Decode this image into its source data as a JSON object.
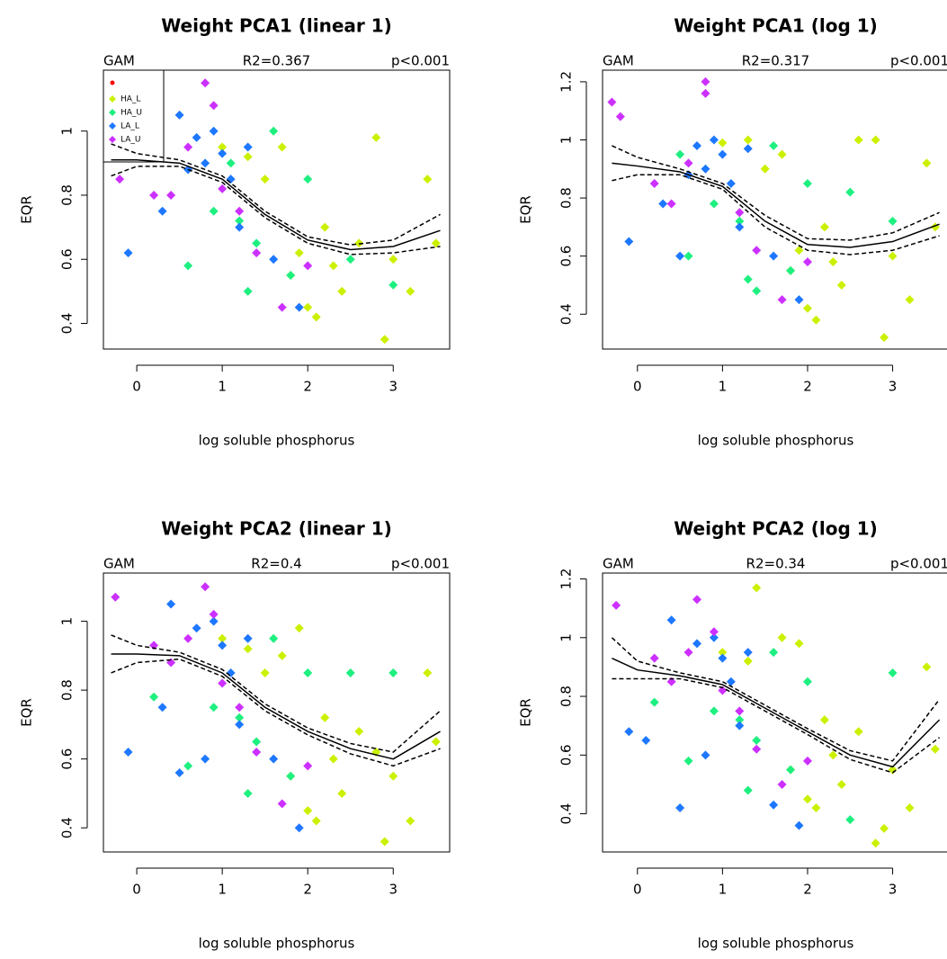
{
  "chart_data": [
    {
      "type": "scatter",
      "title": "Weight PCA1 (linear 1)",
      "header": [
        "GAM",
        "R2=0.367",
        "p<0.001"
      ],
      "xlabel": "log soluble phosphorus",
      "ylabel": "EQR",
      "xlim": [
        -0.39,
        3.66
      ],
      "ylim": [
        0.32,
        1.19
      ],
      "xticks": [
        0,
        1,
        2,
        3
      ],
      "yticks": [
        0.4,
        0.6,
        0.8,
        1.0
      ],
      "legend": "topleft",
      "series": [
        {
          "name": "HA_L",
          "color": "#ccf000",
          "x": [
            1.0,
            1.3,
            1.5,
            1.8,
            2.0,
            2.2,
            2.4,
            2.6,
            2.8,
            3.0,
            3.2,
            3.4,
            1.7,
            2.1,
            2.9,
            2.3,
            1.9,
            3.5
          ],
          "y": [
            0.95,
            0.92,
            0.85,
            0.55,
            0.45,
            0.7,
            0.5,
            0.65,
            0.98,
            0.6,
            0.5,
            0.85,
            0.95,
            0.42,
            0.35,
            0.58,
            0.62,
            0.65
          ]
        },
        {
          "name": "HA_U",
          "color": "#1ef080",
          "x": [
            0.6,
            0.9,
            1.2,
            1.4,
            1.6,
            1.8,
            2.0,
            2.5,
            3.0,
            1.3,
            1.1
          ],
          "y": [
            0.58,
            0.75,
            0.72,
            0.65,
            1.0,
            0.55,
            0.85,
            0.6,
            0.52,
            0.5,
            0.9
          ]
        },
        {
          "name": "LA_L",
          "color": "#1e78ff",
          "x": [
            -0.1,
            0.3,
            0.5,
            0.7,
            0.8,
            0.9,
            1.0,
            1.1,
            1.3,
            1.6,
            1.9,
            0.6,
            1.2
          ],
          "y": [
            0.62,
            0.75,
            1.05,
            0.98,
            0.9,
            1.0,
            0.93,
            0.85,
            0.95,
            0.6,
            0.45,
            0.88,
            0.7
          ]
        },
        {
          "name": "LA_U",
          "color": "#cc30ff",
          "x": [
            -0.2,
            0.2,
            0.4,
            0.8,
            0.9,
            1.2,
            1.4,
            1.7,
            2.0,
            0.6,
            1.0
          ],
          "y": [
            0.85,
            0.8,
            0.8,
            1.15,
            1.08,
            0.75,
            0.62,
            0.45,
            0.58,
            0.95,
            0.82
          ]
        }
      ],
      "curves": [
        {
          "style": "solid",
          "x": [
            -0.3,
            0,
            0.5,
            1,
            1.5,
            2,
            2.5,
            3,
            3.55
          ],
          "y": [
            0.91,
            0.91,
            0.9,
            0.85,
            0.74,
            0.66,
            0.63,
            0.64,
            0.69
          ]
        },
        {
          "style": "dashed",
          "x": [
            -0.3,
            0,
            0.5,
            1,
            1.5,
            2,
            2.5,
            3,
            3.55
          ],
          "y": [
            0.96,
            0.93,
            0.91,
            0.86,
            0.75,
            0.67,
            0.645,
            0.66,
            0.74
          ]
        },
        {
          "style": "dashed",
          "x": [
            -0.3,
            0,
            0.5,
            1,
            1.5,
            2,
            2.5,
            3,
            3.55
          ],
          "y": [
            0.86,
            0.89,
            0.89,
            0.84,
            0.73,
            0.65,
            0.615,
            0.62,
            0.64
          ]
        }
      ]
    },
    {
      "type": "scatter",
      "title": "Weight PCA1 (log 1)",
      "header": [
        "GAM",
        "R2=0.317",
        "p<0.001"
      ],
      "xlabel": "log soluble phosphorus",
      "ylabel": "EQR",
      "xlim": [
        -0.41,
        3.66
      ],
      "ylim": [
        0.28,
        1.24
      ],
      "xticks": [
        0,
        1,
        2,
        3
      ],
      "yticks": [
        0.4,
        0.6,
        0.8,
        1.0,
        1.2
      ],
      "series": [
        {
          "name": "HA_L",
          "color": "#ccf000",
          "x": [
            1.0,
            1.3,
            1.5,
            1.8,
            2.0,
            2.2,
            2.4,
            2.6,
            2.8,
            3.0,
            3.2,
            3.4,
            1.7,
            2.1,
            2.9,
            2.3,
            1.9,
            3.5
          ],
          "y": [
            0.99,
            1.0,
            0.9,
            0.55,
            0.42,
            0.7,
            0.5,
            1.0,
            1.0,
            0.6,
            0.45,
            0.92,
            0.95,
            0.38,
            0.32,
            0.58,
            0.62,
            0.7
          ]
        },
        {
          "name": "HA_U",
          "color": "#1ef080",
          "x": [
            0.6,
            0.9,
            1.2,
            1.4,
            1.6,
            1.8,
            2.0,
            2.5,
            3.0,
            1.3,
            0.5
          ],
          "y": [
            0.6,
            0.78,
            0.72,
            0.48,
            0.98,
            0.55,
            0.85,
            0.82,
            0.72,
            0.52,
            0.95
          ]
        },
        {
          "name": "LA_L",
          "color": "#1e78ff",
          "x": [
            -0.1,
            0.3,
            0.5,
            0.7,
            0.8,
            0.9,
            1.0,
            1.1,
            1.3,
            1.6,
            1.9,
            0.6,
            1.2
          ],
          "y": [
            0.65,
            0.78,
            0.6,
            0.98,
            0.9,
            1.0,
            0.95,
            0.85,
            0.97,
            0.6,
            0.45,
            0.88,
            0.7
          ]
        },
        {
          "name": "LA_U",
          "color": "#cc30ff",
          "x": [
            -0.3,
            -0.2,
            0.2,
            0.4,
            0.8,
            0.8,
            1.2,
            1.4,
            1.7,
            2.0,
            0.6
          ],
          "y": [
            1.13,
            1.08,
            0.85,
            0.78,
            1.2,
            1.16,
            0.75,
            0.62,
            0.45,
            0.58,
            0.92
          ]
        }
      ],
      "curves": [
        {
          "style": "solid",
          "x": [
            -0.3,
            0,
            0.5,
            1,
            1.5,
            2,
            2.5,
            3,
            3.55
          ],
          "y": [
            0.92,
            0.91,
            0.89,
            0.84,
            0.72,
            0.64,
            0.63,
            0.65,
            0.71
          ]
        },
        {
          "style": "dashed",
          "x": [
            -0.3,
            0,
            0.5,
            1,
            1.5,
            2,
            2.5,
            3,
            3.55
          ],
          "y": [
            0.98,
            0.94,
            0.9,
            0.85,
            0.74,
            0.66,
            0.655,
            0.68,
            0.75
          ]
        },
        {
          "style": "dashed",
          "x": [
            -0.3,
            0,
            0.5,
            1,
            1.5,
            2,
            2.5,
            3,
            3.55
          ],
          "y": [
            0.86,
            0.88,
            0.88,
            0.83,
            0.7,
            0.62,
            0.605,
            0.62,
            0.67
          ]
        }
      ]
    },
    {
      "type": "scatter",
      "title": "Weight PCA2 (linear 1)",
      "header": [
        "GAM",
        "R2=0.4",
        "p<0.001"
      ],
      "xlabel": "log soluble phosphorus",
      "ylabel": "EQR",
      "xlim": [
        -0.39,
        3.66
      ],
      "ylim": [
        0.33,
        1.14
      ],
      "xticks": [
        0,
        1,
        2,
        3
      ],
      "yticks": [
        0.4,
        0.6,
        0.8,
        1.0
      ],
      "series": [
        {
          "name": "HA_L",
          "color": "#ccf000",
          "x": [
            1.0,
            1.3,
            1.5,
            1.8,
            2.0,
            2.2,
            2.4,
            2.6,
            2.8,
            3.0,
            3.2,
            3.4,
            1.7,
            2.1,
            2.9,
            2.3,
            1.9,
            3.5
          ],
          "y": [
            0.95,
            0.92,
            0.85,
            0.55,
            0.45,
            0.72,
            0.5,
            0.68,
            0.62,
            0.55,
            0.42,
            0.85,
            0.9,
            0.42,
            0.36,
            0.6,
            0.98,
            0.65
          ]
        },
        {
          "name": "HA_U",
          "color": "#1ef080",
          "x": [
            0.6,
            0.9,
            1.2,
            1.4,
            1.6,
            1.8,
            2.0,
            2.5,
            3.0,
            1.3,
            0.2
          ],
          "y": [
            0.58,
            0.75,
            0.72,
            0.65,
            0.95,
            0.55,
            0.85,
            0.85,
            0.85,
            0.5,
            0.78
          ]
        },
        {
          "name": "LA_L",
          "color": "#1e78ff",
          "x": [
            -0.1,
            0.3,
            0.5,
            0.7,
            0.8,
            0.9,
            1.0,
            1.1,
            1.3,
            1.6,
            1.9,
            0.4,
            1.2
          ],
          "y": [
            0.62,
            0.75,
            0.56,
            0.98,
            0.6,
            1.0,
            0.93,
            0.85,
            0.95,
            0.6,
            0.4,
            1.05,
            0.7
          ]
        },
        {
          "name": "LA_U",
          "color": "#cc30ff",
          "x": [
            -0.25,
            0.2,
            0.4,
            0.8,
            0.9,
            1.2,
            1.4,
            1.7,
            2.0,
            0.6,
            1.0
          ],
          "y": [
            1.07,
            0.93,
            0.88,
            1.1,
            1.02,
            0.75,
            0.62,
            0.47,
            0.58,
            0.95,
            0.82
          ]
        }
      ],
      "curves": [
        {
          "style": "solid",
          "x": [
            -0.3,
            0,
            0.5,
            1,
            1.5,
            2,
            2.5,
            3,
            3.55
          ],
          "y": [
            0.905,
            0.905,
            0.9,
            0.85,
            0.75,
            0.68,
            0.63,
            0.6,
            0.68
          ]
        },
        {
          "style": "dashed",
          "x": [
            -0.3,
            0,
            0.5,
            1,
            1.5,
            2,
            2.5,
            3,
            3.55
          ],
          "y": [
            0.96,
            0.93,
            0.91,
            0.86,
            0.76,
            0.69,
            0.645,
            0.62,
            0.74
          ]
        },
        {
          "style": "dashed",
          "x": [
            -0.3,
            0,
            0.5,
            1,
            1.5,
            2,
            2.5,
            3,
            3.55
          ],
          "y": [
            0.85,
            0.88,
            0.89,
            0.84,
            0.74,
            0.67,
            0.615,
            0.58,
            0.63
          ]
        }
      ]
    },
    {
      "type": "scatter",
      "title": "Weight PCA2 (log 1)",
      "header": [
        "GAM",
        "R2=0.34",
        "p<0.001"
      ],
      "xlabel": "log soluble phosphorus",
      "ylabel": "EQR",
      "xlim": [
        -0.41,
        3.66
      ],
      "ylim": [
        0.27,
        1.22
      ],
      "xticks": [
        0,
        1,
        2,
        3
      ],
      "yticks": [
        0.4,
        0.6,
        0.8,
        1.0,
        1.2
      ],
      "series": [
        {
          "name": "HA_L",
          "color": "#ccf000",
          "x": [
            1.0,
            1.3,
            1.4,
            1.8,
            2.0,
            2.2,
            2.4,
            2.6,
            2.8,
            3.0,
            3.2,
            3.4,
            1.7,
            2.1,
            2.9,
            2.3,
            1.9,
            3.5
          ],
          "y": [
            0.95,
            0.92,
            1.17,
            0.55,
            0.45,
            0.72,
            0.5,
            0.68,
            0.3,
            0.55,
            0.42,
            0.9,
            1.0,
            0.42,
            0.35,
            0.6,
            0.98,
            0.62
          ]
        },
        {
          "name": "HA_U",
          "color": "#1ef080",
          "x": [
            0.6,
            0.9,
            1.2,
            1.4,
            1.6,
            1.8,
            2.0,
            2.5,
            3.0,
            1.3,
            0.2
          ],
          "y": [
            0.58,
            0.75,
            0.72,
            0.65,
            0.95,
            0.55,
            0.85,
            0.38,
            0.88,
            0.48,
            0.78
          ]
        },
        {
          "name": "LA_L",
          "color": "#1e78ff",
          "x": [
            -0.1,
            0.1,
            0.5,
            0.7,
            0.8,
            0.9,
            1.0,
            1.1,
            1.3,
            1.6,
            1.9,
            0.4,
            1.2
          ],
          "y": [
            0.68,
            0.65,
            0.42,
            0.98,
            0.6,
            1.0,
            0.93,
            0.85,
            0.95,
            0.43,
            0.36,
            1.06,
            0.7
          ]
        },
        {
          "name": "LA_U",
          "color": "#cc30ff",
          "x": [
            -0.25,
            0.2,
            0.4,
            0.7,
            0.9,
            1.2,
            1.4,
            1.7,
            2.0,
            0.6,
            1.0
          ],
          "y": [
            1.11,
            0.93,
            0.85,
            1.13,
            1.02,
            0.75,
            0.62,
            0.5,
            0.58,
            0.95,
            0.82
          ]
        }
      ],
      "curves": [
        {
          "style": "solid",
          "x": [
            -0.3,
            0,
            0.5,
            1,
            1.5,
            2,
            2.5,
            3,
            3.55
          ],
          "y": [
            0.93,
            0.89,
            0.87,
            0.84,
            0.76,
            0.68,
            0.6,
            0.56,
            0.72
          ]
        },
        {
          "style": "dashed",
          "x": [
            -0.3,
            0,
            0.5,
            1,
            1.5,
            2,
            2.5,
            3,
            3.55
          ],
          "y": [
            1.0,
            0.92,
            0.88,
            0.85,
            0.77,
            0.69,
            0.615,
            0.58,
            0.79
          ]
        },
        {
          "style": "dashed",
          "x": [
            -0.3,
            0,
            0.5,
            1,
            1.5,
            2,
            2.5,
            3,
            3.55
          ],
          "y": [
            0.86,
            0.86,
            0.86,
            0.83,
            0.75,
            0.67,
            0.585,
            0.54,
            0.66
          ]
        }
      ]
    }
  ]
}
